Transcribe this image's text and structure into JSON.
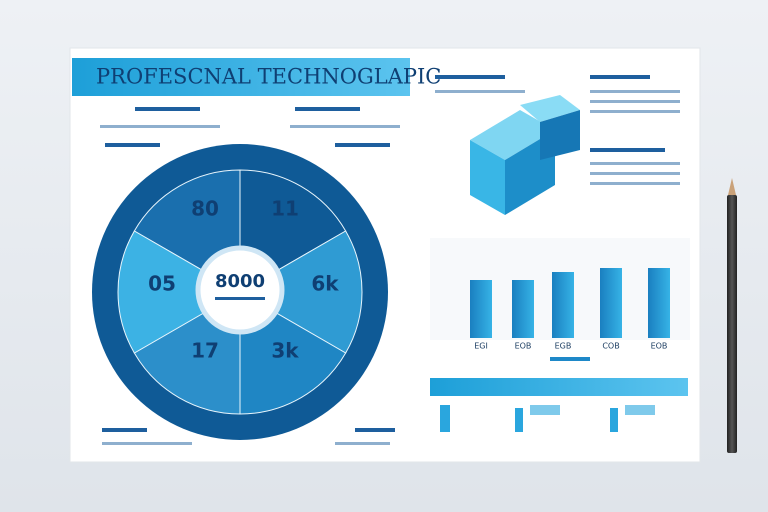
{
  "header": {
    "title": "PROFESCNAL TECHNOGLAPIC"
  },
  "wheel": {
    "center": "8000",
    "segments": [
      "80",
      "11",
      "05",
      "6k",
      "17",
      "3k"
    ]
  },
  "bars": {
    "labels": [
      "EGI",
      "EOB",
      "EGB",
      "COB",
      "EOB"
    ]
  }
}
